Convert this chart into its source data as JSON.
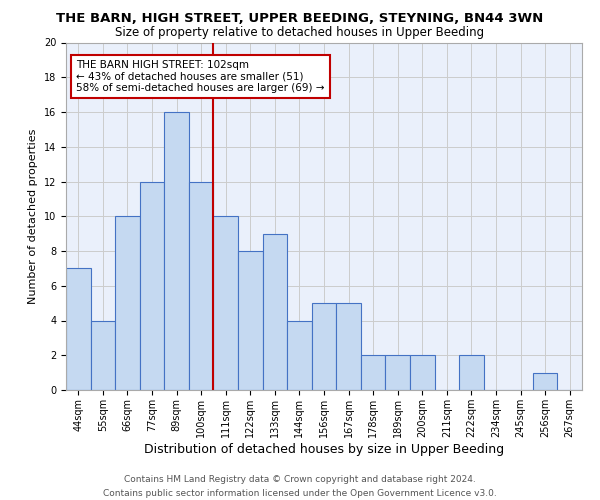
{
  "title": "THE BARN, HIGH STREET, UPPER BEEDING, STEYNING, BN44 3WN",
  "subtitle": "Size of property relative to detached houses in Upper Beeding",
  "xlabel": "Distribution of detached houses by size in Upper Beeding",
  "ylabel": "Number of detached properties",
  "footer_line1": "Contains HM Land Registry data © Crown copyright and database right 2024.",
  "footer_line2": "Contains public sector information licensed under the Open Government Licence v3.0.",
  "bar_labels": [
    "44sqm",
    "55sqm",
    "66sqm",
    "77sqm",
    "89sqm",
    "100sqm",
    "111sqm",
    "122sqm",
    "133sqm",
    "144sqm",
    "156sqm",
    "167sqm",
    "178sqm",
    "189sqm",
    "200sqm",
    "211sqm",
    "222sqm",
    "234sqm",
    "245sqm",
    "256sqm",
    "267sqm"
  ],
  "bar_values": [
    7,
    4,
    10,
    12,
    16,
    12,
    10,
    8,
    9,
    4,
    5,
    5,
    2,
    2,
    2,
    0,
    2,
    0,
    0,
    1,
    0
  ],
  "bar_color": "#c5d9f1",
  "bar_edge_color": "#4472c4",
  "annotation_title": "THE BARN HIGH STREET: 102sqm",
  "annotation_line1": "← 43% of detached houses are smaller (51)",
  "annotation_line2": "58% of semi-detached houses are larger (69) →",
  "annotation_box_edge_color": "#c00000",
  "ref_line_color": "#c00000",
  "ref_line_x": 5.5,
  "ylim": [
    0,
    20
  ],
  "yticks": [
    0,
    2,
    4,
    6,
    8,
    10,
    12,
    14,
    16,
    18,
    20
  ],
  "grid_color": "#cccccc",
  "bg_color": "#eaf0fb",
  "title_fontsize": 9.5,
  "subtitle_fontsize": 8.5,
  "xlabel_fontsize": 9,
  "ylabel_fontsize": 8,
  "tick_fontsize": 7,
  "annotation_fontsize": 7.5,
  "footer_fontsize": 6.5
}
